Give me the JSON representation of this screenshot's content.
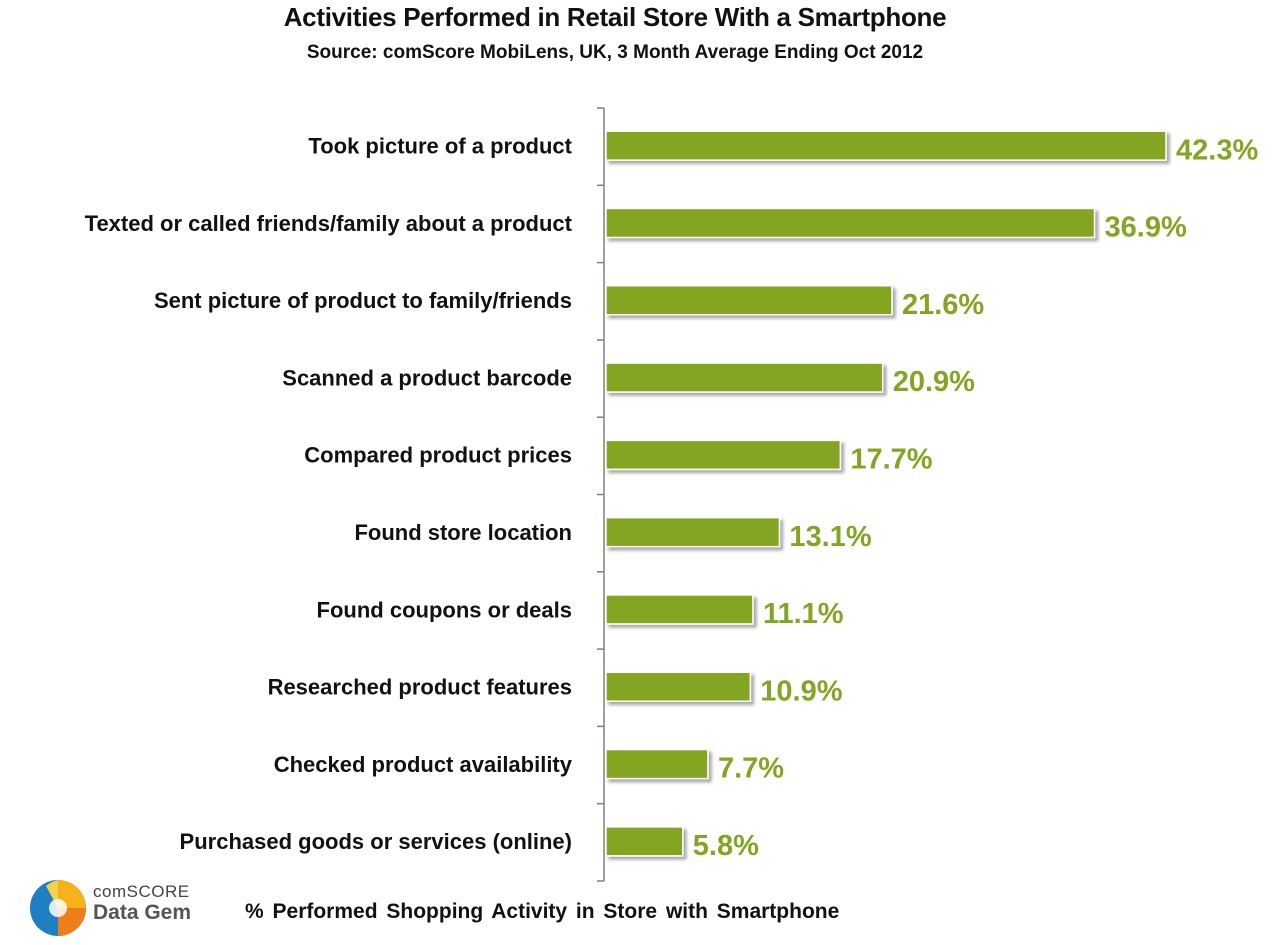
{
  "chart_data": {
    "type": "bar",
    "orientation": "horizontal",
    "title": "Activities Performed in Retail Store With a Smartphone",
    "subtitle": "Source: comScore MobiLens, UK,  3 Month Average Ending Oct 2012",
    "xlabel": "% Performed  Shopping  Activity  in Store with Smartphone",
    "ylabel": "",
    "xlim": [
      0,
      42.3
    ],
    "grid": false,
    "bar_color": "#84a523",
    "label_color": "#84a523",
    "categories": [
      "Took picture of a product",
      "Texted or called friends/family about a product",
      "Sent picture of product to family/friends",
      "Scanned a product barcode",
      "Compared product prices",
      "Found store location",
      "Found coupons or deals",
      "Researched product features",
      "Checked product availability",
      "Purchased goods or services (online)"
    ],
    "values": [
      42.3,
      36.9,
      21.6,
      20.9,
      17.7,
      13.1,
      11.1,
      10.9,
      7.7,
      5.8
    ],
    "value_labels": [
      "42.3%",
      "36.9%",
      "21.6%",
      "20.9%",
      "17.7%",
      "13.1%",
      "11.1%",
      "10.9%",
      "7.7%",
      "5.8%"
    ]
  },
  "brand": {
    "line1": "comSCORE",
    "line2": "Data Gem",
    "icon": "comscore-logo-icon"
  }
}
